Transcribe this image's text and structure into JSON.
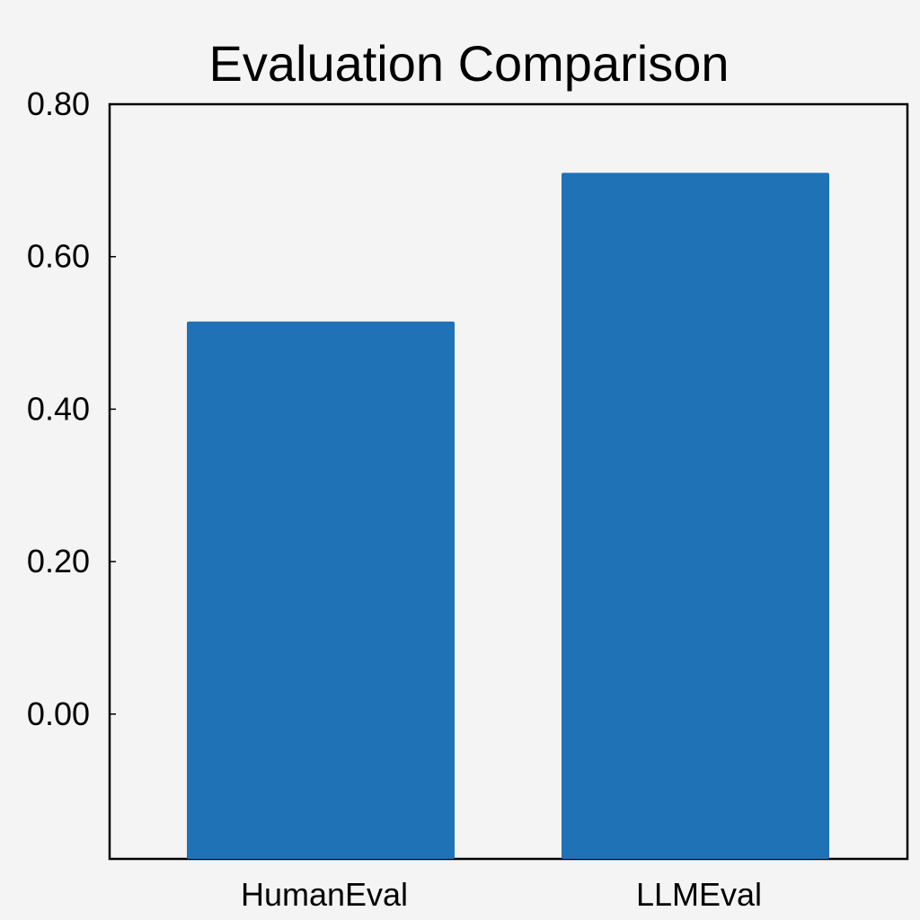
{
  "chart_data": {
    "type": "bar",
    "title": "Evaluation Comparison",
    "categories": [
      "HumanEval",
      "LLMEval"
    ],
    "values": [
      0.515,
      0.71
    ],
    "xlabel": "",
    "ylabel": "",
    "ylim": [
      -0.19,
      0.8
    ],
    "yticks": [
      0.0,
      0.2,
      0.4,
      0.6,
      0.8
    ],
    "ytick_labels": [
      "0.00",
      "0.20",
      "0.40",
      "0.60",
      "0.80"
    ],
    "grid": false,
    "legend": "none",
    "bar_color": "#1f72b6",
    "background_color": "#f4f4f5",
    "axes_color": "#000000"
  }
}
